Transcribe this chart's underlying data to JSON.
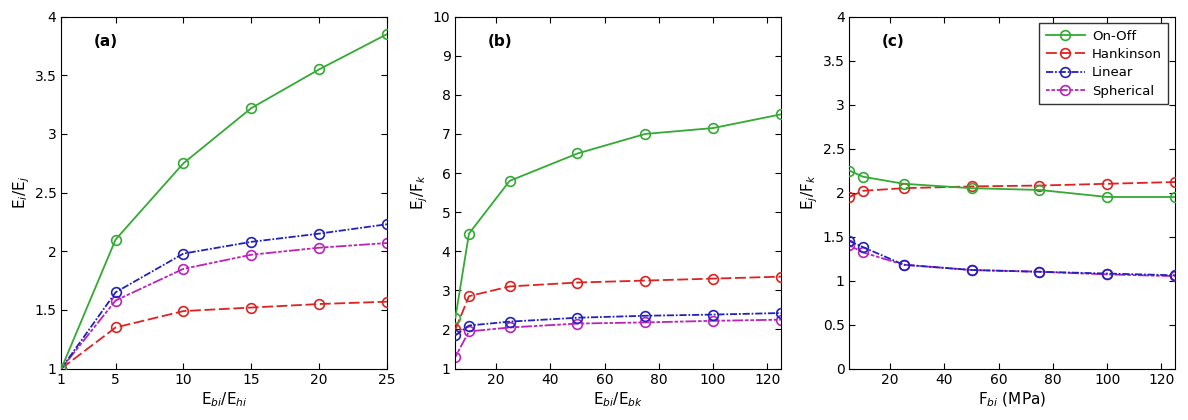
{
  "panel_a": {
    "xlabel": "E$_{bi}$/E$_{hi}$",
    "ylabel": "E$_i$/E$_j$",
    "label": "(a)",
    "xlim": [
      1,
      25
    ],
    "ylim": [
      1,
      4
    ],
    "xticks": [
      1,
      5,
      10,
      15,
      20,
      25
    ],
    "xticklabels": [
      "1",
      "5",
      "10",
      "15",
      "20",
      "25"
    ],
    "yticks": [
      1.0,
      1.5,
      2.0,
      2.5,
      3.0,
      3.5,
      4.0
    ],
    "yticklabels": [
      "1",
      "1.5",
      "2",
      "2.5",
      "3",
      "3.5",
      "4"
    ],
    "onoff_x": [
      1,
      5,
      10,
      15,
      20,
      25
    ],
    "onoff_y": [
      1.0,
      2.1,
      2.75,
      3.22,
      3.55,
      3.85
    ],
    "hankinson_x": [
      1,
      5,
      10,
      15,
      20,
      25
    ],
    "hankinson_y": [
      1.0,
      1.35,
      1.49,
      1.52,
      1.55,
      1.57
    ],
    "linear_x": [
      1,
      5,
      10,
      15,
      20,
      25
    ],
    "linear_y": [
      1.0,
      1.65,
      1.98,
      2.08,
      2.15,
      2.23
    ],
    "spherical_x": [
      1,
      5,
      10,
      15,
      20,
      25
    ],
    "spherical_y": [
      1.0,
      1.58,
      1.85,
      1.97,
      2.03,
      2.07
    ]
  },
  "panel_b": {
    "xlabel": "E$_{bi}$/E$_{bk}$",
    "ylabel": "E$_j$/F$_k$",
    "label": "(b)",
    "xlim": [
      5,
      125
    ],
    "ylim": [
      1,
      10
    ],
    "xticks": [
      20,
      40,
      60,
      80,
      100,
      120
    ],
    "xticklabels": [
      "20",
      "40",
      "60",
      "80",
      "100",
      "120"
    ],
    "yticks": [
      1,
      2,
      3,
      4,
      5,
      6,
      7,
      8,
      9,
      10
    ],
    "yticklabels": [
      "1",
      "2",
      "3",
      "4",
      "5",
      "6",
      "7",
      "8",
      "9",
      "10"
    ],
    "onoff_x": [
      5,
      10,
      25,
      50,
      75,
      100,
      125
    ],
    "onoff_y": [
      2.3,
      4.45,
      5.8,
      6.5,
      7.0,
      7.15,
      7.5
    ],
    "hankinson_x": [
      5,
      10,
      25,
      50,
      75,
      100,
      125
    ],
    "hankinson_y": [
      2.0,
      2.85,
      3.1,
      3.2,
      3.25,
      3.3,
      3.35
    ],
    "linear_x": [
      5,
      10,
      25,
      50,
      75,
      100,
      125
    ],
    "linear_y": [
      1.85,
      2.1,
      2.2,
      2.3,
      2.35,
      2.38,
      2.42
    ],
    "spherical_x": [
      5,
      10,
      25,
      50,
      75,
      100,
      125
    ],
    "spherical_y": [
      1.3,
      1.95,
      2.05,
      2.15,
      2.18,
      2.22,
      2.25
    ]
  },
  "panel_c": {
    "xlabel": "F$_{bi}$ (MPa)",
    "ylabel": "E$_j$/F$_k$",
    "label": "(c)",
    "xlim": [
      5,
      125
    ],
    "ylim": [
      0,
      4
    ],
    "xticks": [
      20,
      40,
      60,
      80,
      100,
      120
    ],
    "xticklabels": [
      "20",
      "40",
      "60",
      "80",
      "100",
      "120"
    ],
    "yticks": [
      0,
      0.5,
      1.0,
      1.5,
      2.0,
      2.5,
      3.0,
      3.5,
      4.0
    ],
    "yticklabels": [
      "0",
      "0.5",
      "1",
      "1.5",
      "2",
      "2.5",
      "3",
      "3.5",
      "4"
    ],
    "onoff_x": [
      5,
      10,
      25,
      50,
      75,
      100,
      125
    ],
    "onoff_y": [
      2.25,
      2.18,
      2.1,
      2.05,
      2.03,
      1.95,
      1.95
    ],
    "hankinson_x": [
      5,
      10,
      25,
      50,
      75,
      100,
      125
    ],
    "hankinson_y": [
      1.95,
      2.02,
      2.05,
      2.07,
      2.08,
      2.1,
      2.12
    ],
    "linear_x": [
      5,
      10,
      25,
      50,
      75,
      100,
      125
    ],
    "linear_y": [
      1.45,
      1.38,
      1.18,
      1.12,
      1.1,
      1.08,
      1.06
    ],
    "spherical_x": [
      5,
      10,
      25,
      50,
      75,
      100,
      125
    ],
    "spherical_y": [
      1.4,
      1.32,
      1.18,
      1.12,
      1.1,
      1.07,
      1.05
    ]
  },
  "colors": {
    "onoff": "#33aa33",
    "hankinson": "#dd2222",
    "linear": "#2222bb",
    "spherical": "#bb22bb"
  },
  "legend_labels": [
    "On-Off",
    "Hankinson",
    "Linear",
    "Spherical"
  ]
}
